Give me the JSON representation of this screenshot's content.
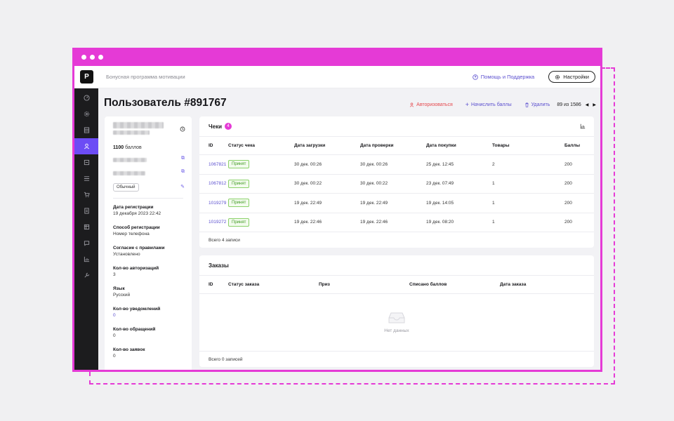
{
  "app": {
    "logo_letter": "P",
    "title": "Бонусная программа мотивации"
  },
  "topbar": {
    "help_label": "Помощь и Поддержка",
    "settings_label": "Настройки"
  },
  "sidebar": {
    "items": [
      "dashboard-icon",
      "settings-gear-icon",
      "database-icon",
      "user-icon",
      "form-icon",
      "list-icon",
      "cart-icon",
      "receipt-icon",
      "table-icon",
      "chat-icon",
      "chart-icon",
      "wrench-icon"
    ],
    "active_index": 3
  },
  "page": {
    "title": "Пользователь #891767",
    "actions": {
      "login": "Авторизоваться",
      "add_points": "Начислить баллы",
      "delete": "Удалить"
    },
    "pager": "89 из 1586"
  },
  "profile": {
    "points_value": "1100",
    "points_unit": "баллов",
    "tag": "Обычный",
    "fields": [
      {
        "label": "Дата регистрации",
        "value": "19 декабря 2023 22:42"
      },
      {
        "label": "Способ регистрации",
        "value": "Номер телефона"
      },
      {
        "label": "Согласие с правилами",
        "value": "Установлено"
      },
      {
        "label": "Кол-во авторизаций",
        "value": "3"
      },
      {
        "label": "Язык",
        "value": "Русский"
      },
      {
        "label": "Кол-во уведомлений",
        "value": "0"
      },
      {
        "label": "Кол-во обращений",
        "value": "0"
      },
      {
        "label": "Кол-во заявок",
        "value": "0"
      }
    ]
  },
  "receipts": {
    "title": "Чеки",
    "count_badge": "4",
    "columns": [
      "ID",
      "Статус чека",
      "Дата загрузки",
      "Дата проверки",
      "Дата покупки",
      "Товары",
      "Баллы"
    ],
    "rows": [
      {
        "id": "1067821",
        "status": "Принят",
        "uploaded": "30 дек. 00:26",
        "checked": "30 дек. 00:26",
        "purchased": "25 дек. 12:45",
        "items": "2",
        "points": "200"
      },
      {
        "id": "1067812",
        "status": "Принят",
        "uploaded": "30 дек. 00:22",
        "checked": "30 дек. 00:22",
        "purchased": "23 дек. 07:49",
        "items": "1",
        "points": "200"
      },
      {
        "id": "1019279",
        "status": "Принят",
        "uploaded": "19 дек. 22:49",
        "checked": "19 дек. 22:49",
        "purchased": "19 дек. 14:05",
        "items": "1",
        "points": "200"
      },
      {
        "id": "1019272",
        "status": "Принят",
        "uploaded": "19 дек. 22:46",
        "checked": "19 дек. 22:46",
        "purchased": "19 дек. 08:20",
        "items": "1",
        "points": "200"
      }
    ],
    "footer": "Всего 4 записи"
  },
  "orders": {
    "title": "Заказы",
    "columns": [
      "ID",
      "Статус заказа",
      "Приз",
      "Списано баллов",
      "Дата заказа"
    ],
    "empty_text": "Нет данных",
    "footer": "Всего 0 записей"
  },
  "colors": {
    "accent": "#6c4cf5",
    "frame": "#e53ad6",
    "success": "#3f9a20",
    "danger": "#e5484d"
  }
}
